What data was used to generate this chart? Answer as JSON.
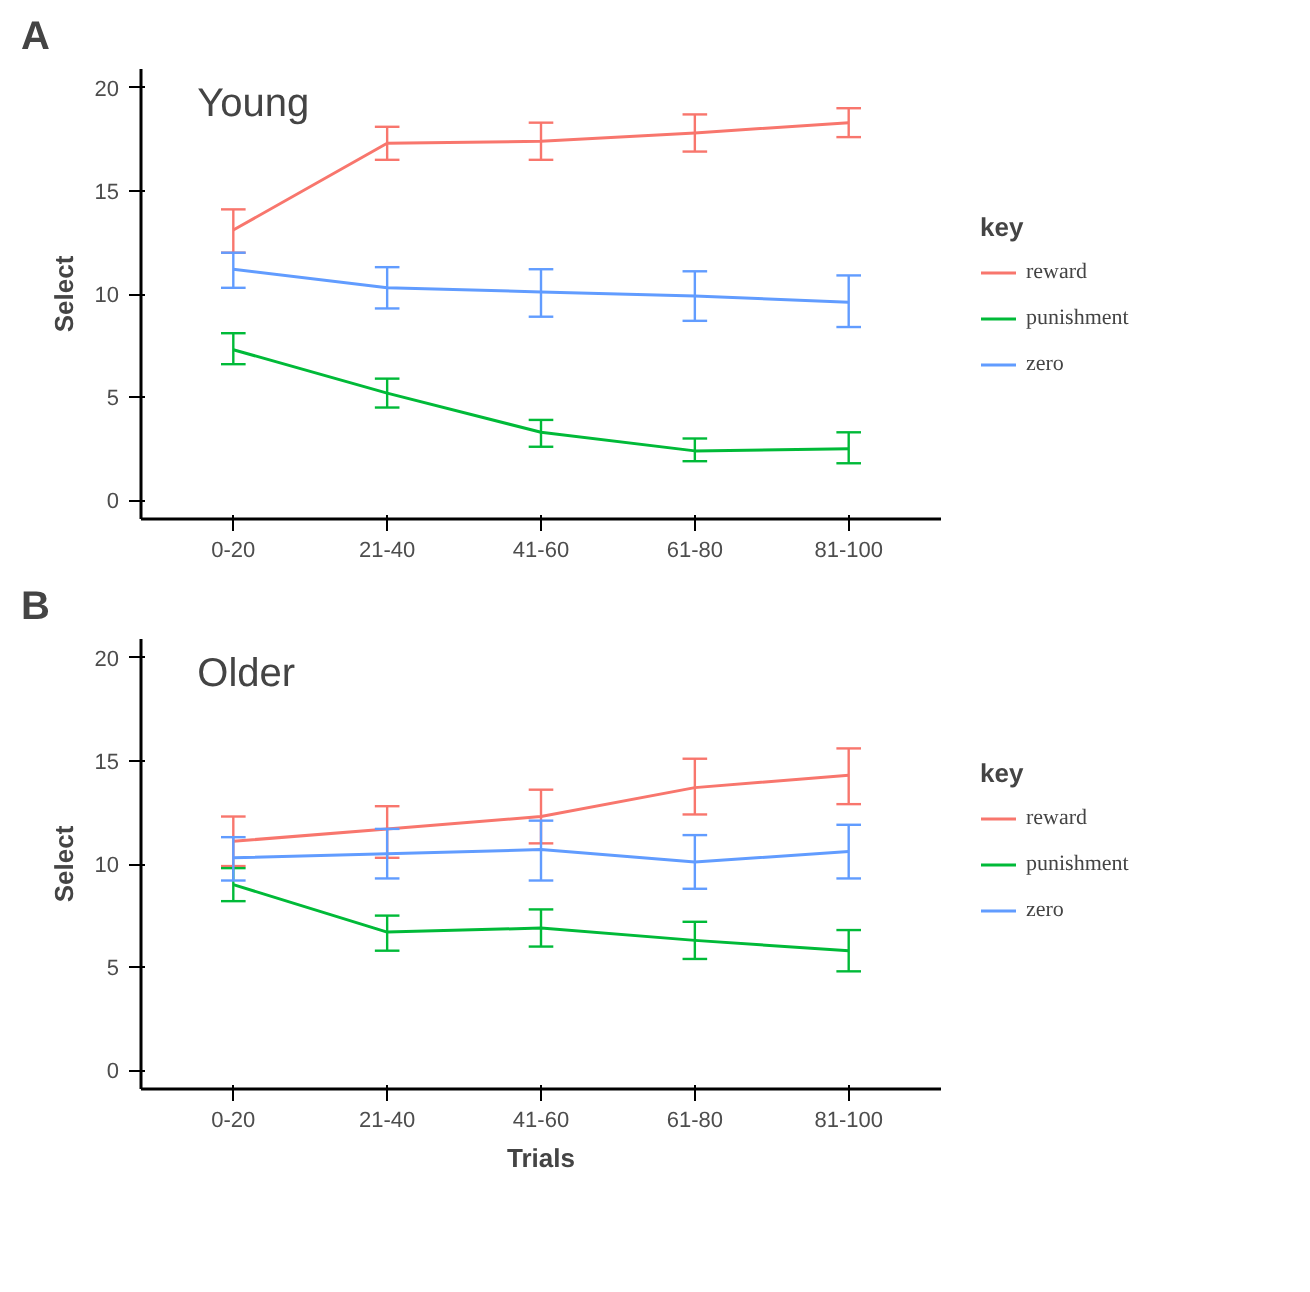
{
  "chart_data": [
    {
      "type": "line",
      "title": "Young",
      "annotations": [
        "A"
      ],
      "ylabel": "Select",
      "legend_title": "key",
      "legend": "right",
      "grid": false,
      "categories": [
        "0-20",
        "21-40",
        "41-60",
        "61-80",
        "81-100"
      ],
      "ylim": [
        -0.9,
        20.9
      ],
      "yticks": [
        0,
        5,
        10,
        15,
        20
      ],
      "series": [
        {
          "name": "reward",
          "color": "#f8766d",
          "values": [
            13.1,
            17.3,
            17.4,
            17.8,
            18.3
          ],
          "errors": [
            [
              12.0,
              14.1
            ],
            [
              16.5,
              18.1
            ],
            [
              16.5,
              18.3
            ],
            [
              16.9,
              18.7
            ],
            [
              17.6,
              19.0
            ]
          ]
        },
        {
          "name": "punishment",
          "color": "#00ba38",
          "values": [
            7.3,
            5.2,
            3.3,
            2.4,
            2.5
          ],
          "errors": [
            [
              6.6,
              8.1
            ],
            [
              4.5,
              5.9
            ],
            [
              2.6,
              3.9
            ],
            [
              1.9,
              3.0
            ],
            [
              1.8,
              3.3
            ]
          ]
        },
        {
          "name": "zero",
          "color": "#619cff",
          "values": [
            11.2,
            10.3,
            10.1,
            9.9,
            9.6
          ],
          "errors": [
            [
              10.3,
              12.0
            ],
            [
              9.3,
              11.3
            ],
            [
              8.9,
              11.2
            ],
            [
              8.7,
              11.1
            ],
            [
              8.4,
              10.9
            ]
          ]
        }
      ]
    },
    {
      "type": "line",
      "title": "Older",
      "annotations": [
        "B"
      ],
      "xlabel": "Trials",
      "ylabel": "Select",
      "legend_title": "key",
      "legend": "right",
      "grid": false,
      "categories": [
        "0-20",
        "21-40",
        "41-60",
        "61-80",
        "81-100"
      ],
      "ylim": [
        -0.9,
        20.9
      ],
      "yticks": [
        0,
        5,
        10,
        15,
        20
      ],
      "series": [
        {
          "name": "reward",
          "color": "#f8766d",
          "values": [
            11.1,
            11.7,
            12.3,
            13.7,
            14.3
          ],
          "errors": [
            [
              9.9,
              12.3
            ],
            [
              10.3,
              12.8
            ],
            [
              11.0,
              13.6
            ],
            [
              12.4,
              15.1
            ],
            [
              12.9,
              15.6
            ]
          ]
        },
        {
          "name": "punishment",
          "color": "#00ba38",
          "values": [
            9.0,
            6.7,
            6.9,
            6.3,
            5.8
          ],
          "errors": [
            [
              8.2,
              9.8
            ],
            [
              5.8,
              7.5
            ],
            [
              6.0,
              7.8
            ],
            [
              5.4,
              7.2
            ],
            [
              4.8,
              6.8
            ]
          ]
        },
        {
          "name": "zero",
          "color": "#619cff",
          "values": [
            10.3,
            10.5,
            10.7,
            10.1,
            10.6
          ],
          "errors": [
            [
              9.2,
              11.3
            ],
            [
              9.3,
              11.7
            ],
            [
              9.2,
              12.1
            ],
            [
              8.8,
              11.4
            ],
            [
              9.3,
              11.9
            ]
          ]
        }
      ]
    }
  ]
}
